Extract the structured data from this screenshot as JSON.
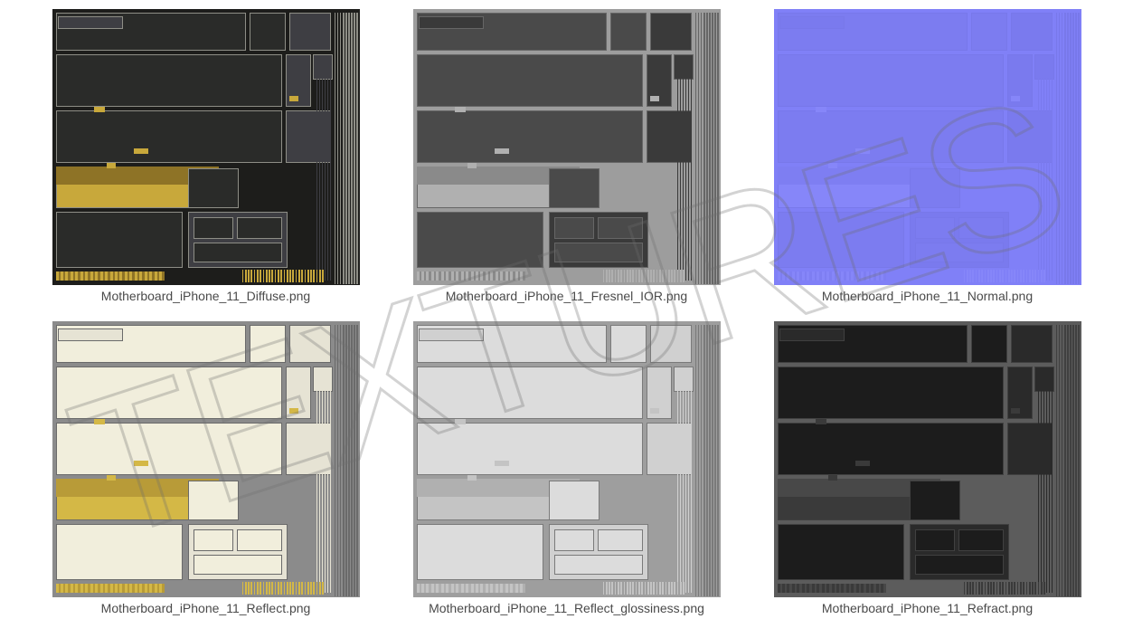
{
  "watermark_text": "TEXTURES",
  "tiles": [
    {
      "label": "Motherboard_iPhone_11_Diffuse.png",
      "bg": "#1d1d1b",
      "chip": "#2a2b29",
      "chip2": "#3e3e43",
      "accent": "#c8a83b",
      "accent2": "#8e7326",
      "line": "#8e8e86"
    },
    {
      "label": "Motherboard_iPhone_11_Fresnel_IOR.png",
      "bg": "#9d9d9d",
      "chip": "#4a4a4a",
      "chip2": "#3a3a3a",
      "accent": "#b0b0b0",
      "accent2": "#8a8a8a",
      "line": "#666666"
    },
    {
      "label": "Motherboard_iPhone_11_Normal.png",
      "bg": "#8080f7",
      "chip": "#7c7cf0",
      "chip2": "#7a7aee",
      "accent": "#8686f9",
      "accent2": "#7e7ef2",
      "line": "#7878ea"
    },
    {
      "label": "Motherboard_iPhone_11_Reflect.png",
      "bg": "#8b8b8b",
      "chip": "#f1eedc",
      "chip2": "#e6e3d4",
      "accent": "#d4b846",
      "accent2": "#b89b38",
      "line": "#6a6a6a"
    },
    {
      "label": "Motherboard_iPhone_11_Reflect_glossiness.png",
      "bg": "#9e9e9e",
      "chip": "#dcdcdc",
      "chip2": "#d0d0d0",
      "accent": "#c4c4c4",
      "accent2": "#b0b0b0",
      "line": "#7a7a7a"
    },
    {
      "label": "Motherboard_iPhone_11_Refract.png",
      "bg": "#5c5c5c",
      "chip": "#1c1c1c",
      "chip2": "#2a2a2a",
      "accent": "#3a3a3a",
      "accent2": "#484848",
      "line": "#404040"
    }
  ]
}
